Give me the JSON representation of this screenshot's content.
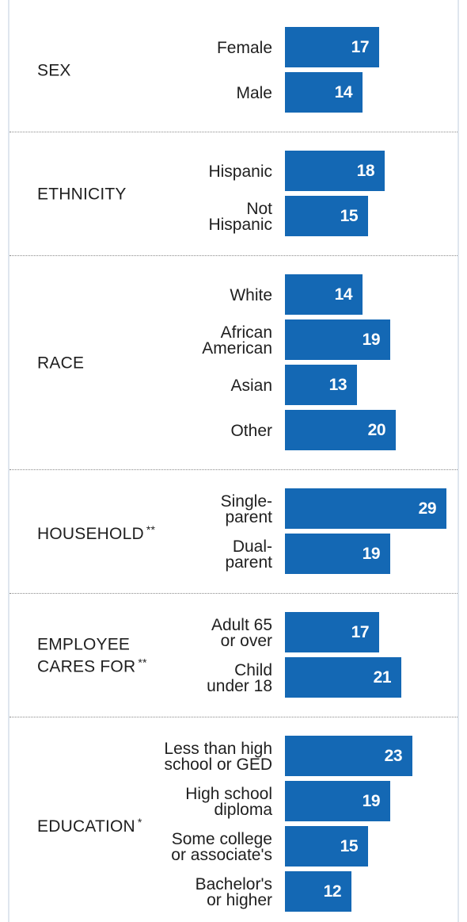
{
  "chart_data": {
    "type": "bar",
    "orientation": "horizontal",
    "bar_color": "#1468b4",
    "groups": [
      {
        "label": [
          "SEX"
        ],
        "stars": "",
        "items": [
          {
            "label": [
              "Female"
            ],
            "value": 17
          },
          {
            "label": [
              "Male"
            ],
            "value": 14
          }
        ]
      },
      {
        "label": [
          "ETHNICITY"
        ],
        "stars": "",
        "items": [
          {
            "label": [
              "Hispanic"
            ],
            "value": 18
          },
          {
            "label": [
              "Not",
              "Hispanic"
            ],
            "value": 15
          }
        ]
      },
      {
        "label": [
          "RACE"
        ],
        "stars": "",
        "items": [
          {
            "label": [
              "White"
            ],
            "value": 14
          },
          {
            "label": [
              "African",
              "American"
            ],
            "value": 19
          },
          {
            "label": [
              "Asian"
            ],
            "value": 13
          },
          {
            "label": [
              "Other"
            ],
            "value": 20
          }
        ]
      },
      {
        "label": [
          "HOUSEHOLD"
        ],
        "stars": "**",
        "items": [
          {
            "label": [
              "Single-",
              "parent"
            ],
            "value": 29
          },
          {
            "label": [
              "Dual-",
              "parent"
            ],
            "value": 19
          }
        ]
      },
      {
        "label": [
          "EMPLOYEE",
          "CARES FOR"
        ],
        "stars": "**",
        "items": [
          {
            "label": [
              "Adult 65",
              "or over"
            ],
            "value": 17
          },
          {
            "label": [
              "Child",
              "under 18"
            ],
            "value": 21
          }
        ]
      },
      {
        "label": [
          "EDUCATION"
        ],
        "stars": "*",
        "items": [
          {
            "label": [
              "Less than high",
              "school or GED"
            ],
            "value": 23
          },
          {
            "label": [
              "High school",
              "diploma"
            ],
            "value": 19
          },
          {
            "label": [
              "Some college",
              "or associate's"
            ],
            "value": 15
          },
          {
            "label": [
              "Bachelor's",
              "or higher"
            ],
            "value": 12
          }
        ]
      }
    ]
  }
}
